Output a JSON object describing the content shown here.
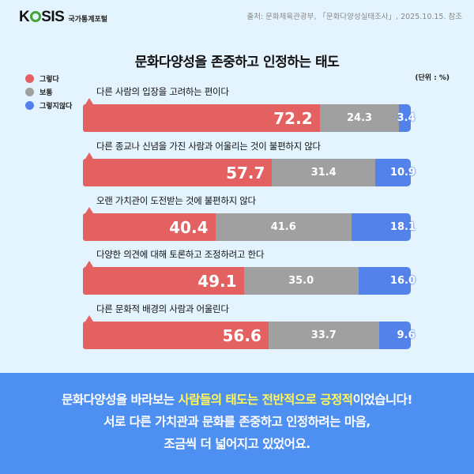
{
  "header": {
    "logo": "KOSIS",
    "logo_sub": "국가통계포털",
    "source": "출처: 문화체육관광부, 「문화다양성실태조사」, 2025.10.15. 참조"
  },
  "chart_data": {
    "type": "bar",
    "orientation": "horizontal-stacked-100",
    "title": "문화다양성을 존중하고 인정하는 태도",
    "unit": "(단위 : %)",
    "legend": [
      "그렇다",
      "보통",
      "그렇지않다"
    ],
    "colors": {
      "그렇다": "#e46162",
      "보통": "#a0a0a0",
      "그렇지않다": "#5383ea"
    },
    "categories": [
      "다른 사람의 입장을 고려하는 편이다",
      "다른 종교나 신념을 가진 사람과 어울리는 것이 불편하지 않다",
      "오랜 가치관이 도전받는 것에 불편하지 않다",
      "다양한 의견에 대해 토론하고 조정하려고 한다",
      "다른 문화적 배경의 사람과 어울린다"
    ],
    "series": [
      {
        "name": "그렇다",
        "values": [
          72.2,
          57.7,
          40.4,
          49.1,
          56.6
        ]
      },
      {
        "name": "보통",
        "values": [
          24.3,
          31.4,
          41.6,
          35.0,
          33.7
        ]
      },
      {
        "name": "그렇지않다",
        "values": [
          3.4,
          10.9,
          18.1,
          16.0,
          9.6
        ]
      }
    ],
    "value_labels": {
      "그렇다": [
        "72.2",
        "57.7",
        "40.4",
        "49.1",
        "56.6"
      ],
      "보통": [
        "24.3",
        "31.4",
        "41.6",
        "35.0",
        "33.7"
      ],
      "그렇지않다": [
        "3.4",
        "10.9",
        "18.1",
        "16.0",
        "9.6"
      ]
    },
    "xlim": [
      0,
      100
    ],
    "grid": false,
    "legend_position": "top-left"
  },
  "banner": {
    "line1_pre": "문화다양성을 바라보는 ",
    "line1_hl1": "사람들의 태도는 전반적으로 긍정적",
    "line1_post": "이었습니다!",
    "line2": "서로 다른 가치관과 문화를 존중하고 인정하려는 마음,",
    "line3": "조금씩 더 넓어지고 있었어요."
  }
}
